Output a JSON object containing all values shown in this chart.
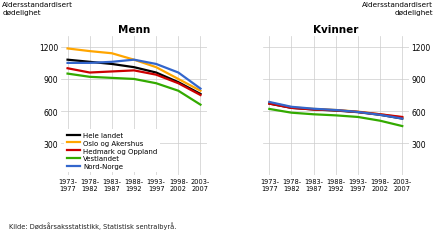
{
  "x_labels": [
    "1973-\n1977",
    "1978-\n1982",
    "1983-\n1987",
    "1988-\n1992",
    "1993-\n1997",
    "1998-\n2002",
    "2003-\n2007"
  ],
  "x_positions": [
    0,
    1,
    2,
    3,
    4,
    5,
    6
  ],
  "men": {
    "Hele landet": [
      1080,
      1060,
      1040,
      1010,
      960,
      870,
      760
    ],
    "Oslo og Akershus": [
      1185,
      1160,
      1140,
      1080,
      1010,
      900,
      790
    ],
    "Hedmark og Oppland": [
      1000,
      960,
      970,
      980,
      940,
      860,
      750
    ],
    "Vestlandet": [
      950,
      920,
      910,
      900,
      860,
      790,
      660
    ],
    "Nord-Norge": [
      1050,
      1050,
      1060,
      1080,
      1040,
      960,
      810
    ]
  },
  "women": {
    "Hele landet": [
      670,
      630,
      615,
      605,
      590,
      565,
      530
    ],
    "Oslo og Akershus": [
      680,
      635,
      620,
      610,
      595,
      570,
      540
    ],
    "Hedmark og Oppland": [
      670,
      630,
      615,
      608,
      592,
      570,
      545
    ],
    "Vestlandet": [
      620,
      585,
      570,
      560,
      545,
      510,
      460
    ],
    "Nord-Norge": [
      685,
      640,
      622,
      610,
      592,
      565,
      530
    ]
  },
  "colors": {
    "Hele landet": "#000000",
    "Oslo og Akershus": "#FFA500",
    "Hedmark og Oppland": "#CC0000",
    "Vestlandet": "#33AA00",
    "Nord-Norge": "#3366CC"
  },
  "series_order": [
    "Hele landet",
    "Oslo og Akershus",
    "Hedmark og Oppland",
    "Vestlandet",
    "Nord-Norge"
  ],
  "ylim": [
    0,
    1300
  ],
  "yticks": [
    0,
    300,
    600,
    900,
    1200
  ],
  "ylabel_left": "Aldersstandardisert\ndødelighet",
  "ylabel_right": "Aldersstandardisert\ndødelighet",
  "title_men": "Menn",
  "title_women": "Kvinner",
  "caption": "Kilde: Dødsårsaksstatistikk, Statistisk sentralbyrå.",
  "linewidth": 1.6
}
